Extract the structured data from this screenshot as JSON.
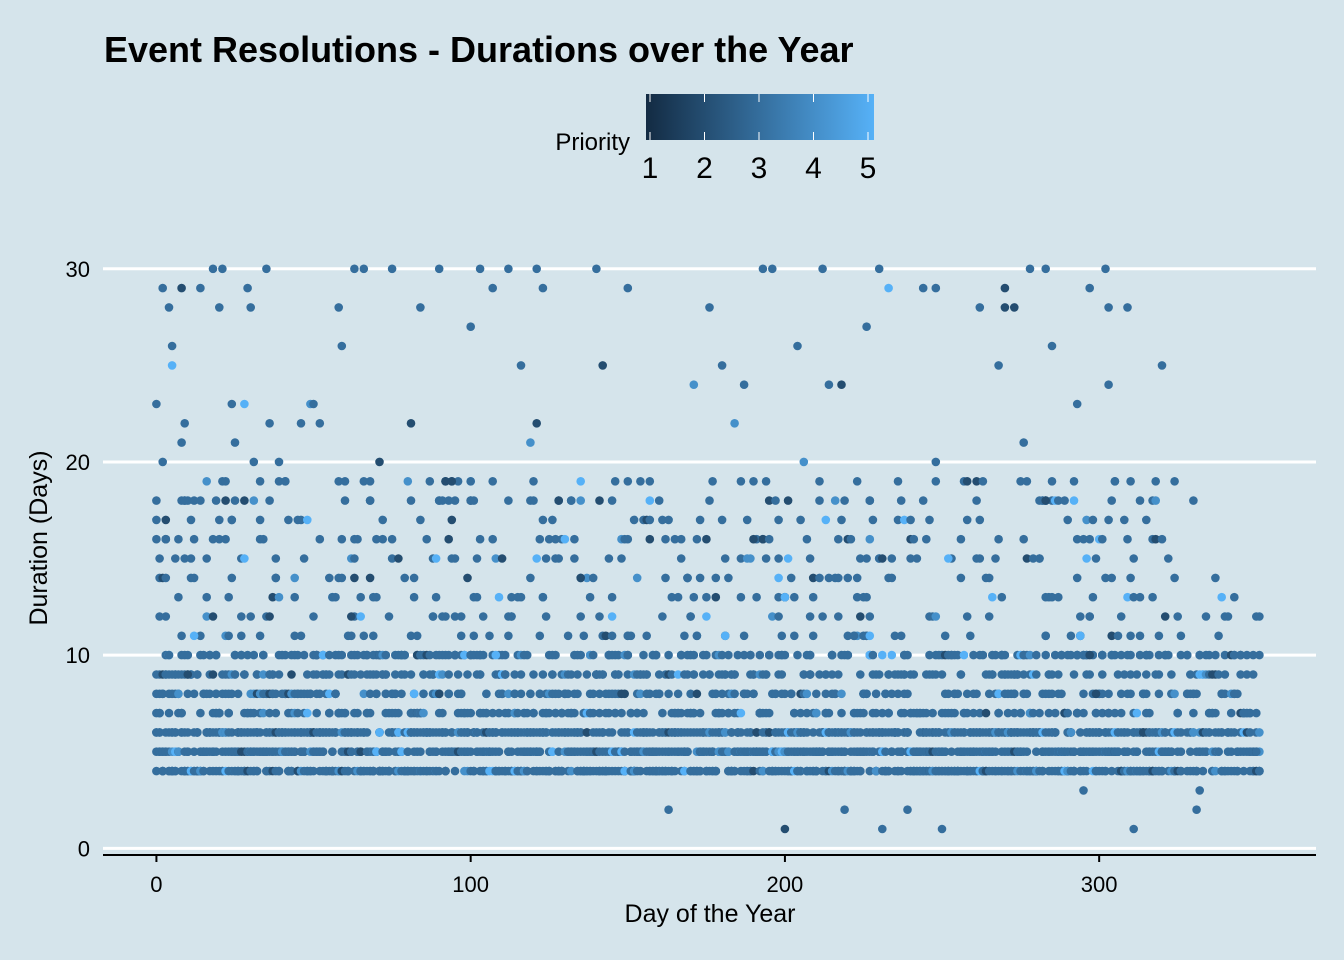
{
  "chart_data": {
    "type": "scatter",
    "title": "Event Resolutions - Durations over the Year",
    "xlabel": "Day of the Year",
    "ylabel": "Duration (Days)",
    "xlim": [
      -17,
      369
    ],
    "ylim": [
      -0.5,
      33.3
    ],
    "x_ticks": [
      0,
      100,
      200,
      300
    ],
    "y_ticks": [
      0,
      10,
      20,
      30
    ],
    "grid": "horizontal major gridlines (white)",
    "legend": {
      "title": "Priority",
      "placement": "top",
      "type": "continuous colorbar",
      "ticks": [
        1,
        2,
        3,
        4,
        5
      ],
      "low_color": "#132b43",
      "high_color": "#56b1f7"
    },
    "dominant_priority": 3,
    "points": [
      {
        "x": 0,
        "y": 23,
        "p": 3
      },
      {
        "x": 0,
        "y": 16,
        "p": 3
      },
      {
        "x": 1,
        "y": 12,
        "p": 3
      },
      {
        "x": 1,
        "y": 6,
        "p": 3
      },
      {
        "x": 2,
        "y": 29,
        "p": 3
      },
      {
        "x": 2,
        "y": 20,
        "p": 3
      },
      {
        "x": 3,
        "y": 17,
        "p": 2
      },
      {
        "x": 3,
        "y": 14,
        "p": 3
      },
      {
        "x": 4,
        "y": 28,
        "p": 3
      },
      {
        "x": 5,
        "y": 25,
        "p": 5
      },
      {
        "x": 5,
        "y": 26,
        "p": 3
      },
      {
        "x": 6,
        "y": 15,
        "p": 3
      },
      {
        "x": 8,
        "y": 29,
        "p": 2
      },
      {
        "x": 8,
        "y": 21,
        "p": 3
      },
      {
        "x": 9,
        "y": 22,
        "p": 3
      },
      {
        "x": 9,
        "y": 18,
        "p": 3
      },
      {
        "x": 10,
        "y": 9,
        "p": 2
      },
      {
        "x": 12,
        "y": 11,
        "p": 5
      },
      {
        "x": 14,
        "y": 29,
        "p": 3
      },
      {
        "x": 16,
        "y": 13,
        "p": 3
      },
      {
        "x": 18,
        "y": 30,
        "p": 3
      },
      {
        "x": 19,
        "y": 18,
        "p": 3
      },
      {
        "x": 20,
        "y": 28,
        "p": 3
      },
      {
        "x": 21,
        "y": 30,
        "p": 3
      },
      {
        "x": 22,
        "y": 18,
        "p": 2
      },
      {
        "x": 24,
        "y": 23,
        "p": 3
      },
      {
        "x": 25,
        "y": 21,
        "p": 3
      },
      {
        "x": 28,
        "y": 23,
        "p": 5
      },
      {
        "x": 28,
        "y": 18,
        "p": 2
      },
      {
        "x": 28,
        "y": 15,
        "p": 5
      },
      {
        "x": 29,
        "y": 29,
        "p": 3
      },
      {
        "x": 30,
        "y": 28,
        "p": 3
      },
      {
        "x": 31,
        "y": 20,
        "p": 3
      },
      {
        "x": 35,
        "y": 30,
        "p": 3
      },
      {
        "x": 36,
        "y": 22,
        "p": 3
      },
      {
        "x": 36,
        "y": 12,
        "p": 2
      },
      {
        "x": 39,
        "y": 20,
        "p": 3
      },
      {
        "x": 41,
        "y": 19,
        "p": 3
      },
      {
        "x": 44,
        "y": 14,
        "p": 4
      },
      {
        "x": 46,
        "y": 22,
        "p": 3
      },
      {
        "x": 49,
        "y": 23,
        "p": 4
      },
      {
        "x": 50,
        "y": 23,
        "p": 3
      },
      {
        "x": 52,
        "y": 22,
        "p": 3
      },
      {
        "x": 58,
        "y": 28,
        "p": 3
      },
      {
        "x": 59,
        "y": 26,
        "p": 3
      },
      {
        "x": 62,
        "y": 12,
        "p": 2
      },
      {
        "x": 63,
        "y": 30,
        "p": 3
      },
      {
        "x": 65,
        "y": 12,
        "p": 5
      },
      {
        "x": 66,
        "y": 30,
        "p": 3
      },
      {
        "x": 68,
        "y": 14,
        "p": 2
      },
      {
        "x": 71,
        "y": 20,
        "p": 2
      },
      {
        "x": 75,
        "y": 30,
        "p": 3
      },
      {
        "x": 81,
        "y": 22,
        "p": 2
      },
      {
        "x": 82,
        "y": 8,
        "p": 5
      },
      {
        "x": 84,
        "y": 28,
        "p": 3
      },
      {
        "x": 90,
        "y": 30,
        "p": 3
      },
      {
        "x": 92,
        "y": 19,
        "p": 2
      },
      {
        "x": 94,
        "y": 19,
        "p": 2
      },
      {
        "x": 100,
        "y": 27,
        "p": 3
      },
      {
        "x": 103,
        "y": 30,
        "p": 3
      },
      {
        "x": 107,
        "y": 29,
        "p": 3
      },
      {
        "x": 108,
        "y": 10,
        "p": 5
      },
      {
        "x": 109,
        "y": 13,
        "p": 5
      },
      {
        "x": 112,
        "y": 30,
        "p": 3
      },
      {
        "x": 116,
        "y": 25,
        "p": 3
      },
      {
        "x": 119,
        "y": 21,
        "p": 4
      },
      {
        "x": 121,
        "y": 22,
        "p": 2
      },
      {
        "x": 121,
        "y": 30,
        "p": 3
      },
      {
        "x": 123,
        "y": 29,
        "p": 3
      },
      {
        "x": 128,
        "y": 18,
        "p": 2
      },
      {
        "x": 135,
        "y": 19,
        "p": 5
      },
      {
        "x": 135,
        "y": 14,
        "p": 2
      },
      {
        "x": 140,
        "y": 30,
        "p": 3
      },
      {
        "x": 141,
        "y": 18,
        "p": 2
      },
      {
        "x": 142,
        "y": 25,
        "p": 2
      },
      {
        "x": 145,
        "y": 12,
        "p": 5
      },
      {
        "x": 150,
        "y": 29,
        "p": 3
      },
      {
        "x": 157,
        "y": 18,
        "p": 5
      },
      {
        "x": 163,
        "y": 2,
        "p": 3
      },
      {
        "x": 171,
        "y": 24,
        "p": 4
      },
      {
        "x": 176,
        "y": 28,
        "p": 3
      },
      {
        "x": 178,
        "y": 13,
        "p": 2
      },
      {
        "x": 180,
        "y": 25,
        "p": 3
      },
      {
        "x": 184,
        "y": 22,
        "p": 4
      },
      {
        "x": 187,
        "y": 24,
        "p": 3
      },
      {
        "x": 190,
        "y": 16,
        "p": 2
      },
      {
        "x": 193,
        "y": 30,
        "p": 3
      },
      {
        "x": 196,
        "y": 30,
        "p": 3
      },
      {
        "x": 198,
        "y": 14,
        "p": 5
      },
      {
        "x": 200,
        "y": 13,
        "p": 5
      },
      {
        "x": 200,
        "y": 1,
        "p": 2
      },
      {
        "x": 204,
        "y": 26,
        "p": 3
      },
      {
        "x": 206,
        "y": 20,
        "p": 4
      },
      {
        "x": 212,
        "y": 30,
        "p": 3
      },
      {
        "x": 214,
        "y": 24,
        "p": 3
      },
      {
        "x": 218,
        "y": 24,
        "p": 2
      },
      {
        "x": 219,
        "y": 2,
        "p": 3
      },
      {
        "x": 222,
        "y": 11,
        "p": 3
      },
      {
        "x": 226,
        "y": 27,
        "p": 3
      },
      {
        "x": 227,
        "y": 11,
        "p": 5
      },
      {
        "x": 230,
        "y": 30,
        "p": 3
      },
      {
        "x": 231,
        "y": 1,
        "p": 3
      },
      {
        "x": 233,
        "y": 29,
        "p": 5
      },
      {
        "x": 239,
        "y": 2,
        "p": 3
      },
      {
        "x": 244,
        "y": 29,
        "p": 3
      },
      {
        "x": 248,
        "y": 29,
        "p": 3
      },
      {
        "x": 248,
        "y": 20,
        "p": 3
      },
      {
        "x": 250,
        "y": 1,
        "p": 3
      },
      {
        "x": 252,
        "y": 15,
        "p": 5
      },
      {
        "x": 258,
        "y": 19,
        "p": 2
      },
      {
        "x": 262,
        "y": 28,
        "p": 3
      },
      {
        "x": 266,
        "y": 13,
        "p": 5
      },
      {
        "x": 268,
        "y": 25,
        "p": 3
      },
      {
        "x": 270,
        "y": 29,
        "p": 2
      },
      {
        "x": 270,
        "y": 28,
        "p": 2
      },
      {
        "x": 273,
        "y": 28,
        "p": 2
      },
      {
        "x": 276,
        "y": 21,
        "p": 3
      },
      {
        "x": 278,
        "y": 30,
        "p": 3
      },
      {
        "x": 281,
        "y": 18,
        "p": 3
      },
      {
        "x": 283,
        "y": 30,
        "p": 3
      },
      {
        "x": 283,
        "y": 18,
        "p": 2
      },
      {
        "x": 285,
        "y": 26,
        "p": 3
      },
      {
        "x": 293,
        "y": 23,
        "p": 3
      },
      {
        "x": 294,
        "y": 11,
        "p": 5
      },
      {
        "x": 295,
        "y": 3,
        "p": 3
      },
      {
        "x": 297,
        "y": 29,
        "p": 3
      },
      {
        "x": 297,
        "y": 10,
        "p": 2
      },
      {
        "x": 299,
        "y": 8,
        "p": 2
      },
      {
        "x": 302,
        "y": 30,
        "p": 3
      },
      {
        "x": 303,
        "y": 28,
        "p": 3
      },
      {
        "x": 303,
        "y": 24,
        "p": 3
      },
      {
        "x": 309,
        "y": 28,
        "p": 3
      },
      {
        "x": 311,
        "y": 1,
        "p": 3
      },
      {
        "x": 320,
        "y": 25,
        "p": 3
      },
      {
        "x": 330,
        "y": 18,
        "p": 3
      },
      {
        "x": 331,
        "y": 2,
        "p": 3
      },
      {
        "x": 332,
        "y": 3,
        "p": 3
      },
      {
        "x": 337,
        "y": 14,
        "p": 3
      },
      {
        "x": 339,
        "y": 13,
        "p": 5
      },
      {
        "x": 343,
        "y": 10,
        "p": 3
      },
      {
        "x": 346,
        "y": 7,
        "p": 3
      },
      {
        "x": 350,
        "y": 5,
        "p": 3
      },
      {
        "x": 351,
        "y": 4,
        "p": 3
      }
    ],
    "bulk_note": "Dense band of priority-3 points between durations 4-10 for days 0-350; points thinner above 15 days"
  }
}
